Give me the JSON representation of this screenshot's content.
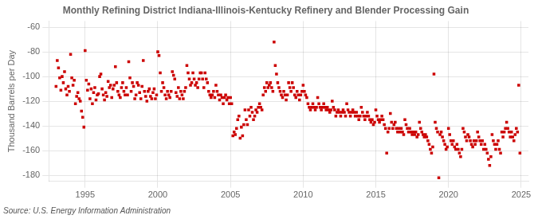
{
  "chart_data": {
    "type": "scatter",
    "title": "Monthly Refining District Indiana-Illinois-Kentucky Refinery and Blender Processing Gain",
    "ylabel": "Thousand Barrels per Day",
    "source": "Source: U.S. Energy Information Administration",
    "color": "#cc0000",
    "marker": "square",
    "grid": true,
    "xlim": [
      1992.5,
      2025.5
    ],
    "ylim": [
      -185,
      -55
    ],
    "xticks": [
      1995,
      2000,
      2005,
      2010,
      2015,
      2020,
      2025
    ],
    "yticks": [
      -180,
      -160,
      -140,
      -120,
      -100,
      -80,
      -60
    ],
    "x": [
      1993.0,
      1993.083,
      1993.167,
      1993.25,
      1993.333,
      1993.417,
      1993.5,
      1993.583,
      1993.667,
      1993.75,
      1993.833,
      1993.917,
      1994.0,
      1994.083,
      1994.167,
      1994.25,
      1994.333,
      1994.417,
      1994.5,
      1994.583,
      1994.667,
      1994.75,
      1994.833,
      1994.917,
      1995.0,
      1995.083,
      1995.167,
      1995.25,
      1995.333,
      1995.417,
      1995.5,
      1995.583,
      1995.667,
      1995.75,
      1995.833,
      1995.917,
      1996.0,
      1996.083,
      1996.167,
      1996.25,
      1996.333,
      1996.417,
      1996.5,
      1996.583,
      1996.667,
      1996.75,
      1996.833,
      1996.917,
      1997.0,
      1997.083,
      1997.167,
      1997.25,
      1997.333,
      1997.417,
      1997.5,
      1997.583,
      1997.667,
      1997.75,
      1997.833,
      1997.917,
      1998.0,
      1998.083,
      1998.167,
      1998.25,
      1998.333,
      1998.417,
      1998.5,
      1998.583,
      1998.667,
      1998.75,
      1998.833,
      1998.917,
      1999.0,
      1999.083,
      1999.167,
      1999.25,
      1999.333,
      1999.417,
      1999.5,
      1999.583,
      1999.667,
      1999.75,
      1999.833,
      1999.917,
      2000.0,
      2000.083,
      2000.167,
      2000.25,
      2000.333,
      2000.417,
      2000.5,
      2000.583,
      2000.667,
      2000.75,
      2000.833,
      2000.917,
      2001.0,
      2001.083,
      2001.167,
      2001.25,
      2001.333,
      2001.417,
      2001.5,
      2001.583,
      2001.667,
      2001.75,
      2001.833,
      2001.917,
      2002.0,
      2002.083,
      2002.167,
      2002.25,
      2002.333,
      2002.417,
      2002.5,
      2002.583,
      2002.667,
      2002.75,
      2002.833,
      2002.917,
      2003.0,
      2003.083,
      2003.167,
      2003.25,
      2003.333,
      2003.417,
      2003.5,
      2003.583,
      2003.667,
      2003.75,
      2003.833,
      2003.917,
      2004.0,
      2004.083,
      2004.167,
      2004.25,
      2004.333,
      2004.417,
      2004.5,
      2004.583,
      2004.667,
      2004.75,
      2004.833,
      2004.917,
      2005.0,
      2005.083,
      2005.167,
      2005.25,
      2005.333,
      2005.417,
      2005.5,
      2005.583,
      2005.667,
      2005.75,
      2005.833,
      2005.917,
      2006.0,
      2006.083,
      2006.167,
      2006.25,
      2006.333,
      2006.417,
      2006.5,
      2006.583,
      2006.667,
      2006.75,
      2006.833,
      2006.917,
      2007.0,
      2007.083,
      2007.167,
      2007.25,
      2007.333,
      2007.417,
      2007.5,
      2007.583,
      2007.667,
      2007.75,
      2007.833,
      2007.917,
      2008.0,
      2008.083,
      2008.167,
      2008.25,
      2008.333,
      2008.417,
      2008.5,
      2008.583,
      2008.667,
      2008.75,
      2008.833,
      2008.917,
      2009.0,
      2009.083,
      2009.167,
      2009.25,
      2009.333,
      2009.417,
      2009.5,
      2009.583,
      2009.667,
      2009.75,
      2009.833,
      2009.917,
      2010.0,
      2010.083,
      2010.167,
      2010.25,
      2010.333,
      2010.417,
      2010.5,
      2010.583,
      2010.667,
      2010.75,
      2010.833,
      2010.917,
      2011.0,
      2011.083,
      2011.167,
      2011.25,
      2011.333,
      2011.417,
      2011.5,
      2011.583,
      2011.667,
      2011.75,
      2011.833,
      2011.917,
      2012.0,
      2012.083,
      2012.167,
      2012.25,
      2012.333,
      2012.417,
      2012.5,
      2012.583,
      2012.667,
      2012.75,
      2012.833,
      2012.917,
      2013.0,
      2013.083,
      2013.167,
      2013.25,
      2013.333,
      2013.417,
      2013.5,
      2013.583,
      2013.667,
      2013.75,
      2013.833,
      2013.917,
      2014.0,
      2014.083,
      2014.167,
      2014.25,
      2014.333,
      2014.417,
      2014.5,
      2014.583,
      2014.667,
      2014.75,
      2014.833,
      2014.917,
      2015.0,
      2015.083,
      2015.167,
      2015.25,
      2015.333,
      2015.417,
      2015.5,
      2015.583,
      2015.667,
      2015.75,
      2015.833,
      2015.917,
      2016.0,
      2016.083,
      2016.167,
      2016.25,
      2016.333,
      2016.417,
      2016.5,
      2016.583,
      2016.667,
      2016.75,
      2016.833,
      2016.917,
      2017.0,
      2017.083,
      2017.167,
      2017.25,
      2017.333,
      2017.417,
      2017.5,
      2017.583,
      2017.667,
      2017.75,
      2017.833,
      2017.917,
      2018.0,
      2018.083,
      2018.167,
      2018.25,
      2018.333,
      2018.417,
      2018.5,
      2018.583,
      2018.667,
      2018.75,
      2018.833,
      2018.917,
      2019.0,
      2019.083,
      2019.167,
      2019.25,
      2019.333,
      2019.417,
      2019.5,
      2019.583,
      2019.667,
      2019.75,
      2019.833,
      2019.917,
      2020.0,
      2020.083,
      2020.167,
      2020.25,
      2020.333,
      2020.417,
      2020.5,
      2020.583,
      2020.667,
      2020.75,
      2020.833,
      2020.917,
      2021.0,
      2021.083,
      2021.167,
      2021.25,
      2021.333,
      2021.417,
      2021.5,
      2021.583,
      2021.667,
      2021.75,
      2021.833,
      2021.917,
      2022.0,
      2022.083,
      2022.167,
      2022.25,
      2022.333,
      2022.417,
      2022.5,
      2022.583,
      2022.667,
      2022.75,
      2022.833,
      2022.917,
      2023.0,
      2023.083,
      2023.167,
      2023.25,
      2023.333,
      2023.417,
      2023.5,
      2023.583,
      2023.667,
      2023.75,
      2023.833,
      2023.917,
      2024.0,
      2024.083,
      2024.167,
      2024.25,
      2024.333,
      2024.417,
      2024.5,
      2024.583,
      2024.667,
      2024.75,
      2024.833,
      2024.917
    ],
    "values": [
      -108,
      -87,
      -93,
      -101,
      -111,
      -100,
      -105,
      -96,
      -110,
      -115,
      -108,
      -112,
      -82,
      -101,
      -107,
      -103,
      -122,
      -116,
      -113,
      -118,
      -120,
      -128,
      -133,
      -141,
      -79,
      -103,
      -111,
      -106,
      -118,
      -110,
      -122,
      -113,
      -109,
      -119,
      -115,
      -114,
      -100,
      -98,
      -110,
      -115,
      -119,
      -113,
      -116,
      -104,
      -109,
      -107,
      -117,
      -110,
      -107,
      -92,
      -105,
      -112,
      -115,
      -117,
      -109,
      -105,
      -112,
      -115,
      -109,
      -115,
      -88,
      -101,
      -112,
      -105,
      -108,
      -118,
      -115,
      -105,
      -107,
      -113,
      -118,
      -108,
      -87,
      -112,
      -116,
      -120,
      -112,
      -110,
      -116,
      -118,
      -113,
      -110,
      -118,
      -115,
      -80,
      -83,
      -97,
      -112,
      -105,
      -109,
      -115,
      -118,
      -112,
      -115,
      -117,
      -112,
      -96,
      -99,
      -102,
      -113,
      -116,
      -109,
      -118,
      -112,
      -115,
      -118,
      -112,
      -109,
      -91,
      -97,
      -102,
      -107,
      -105,
      -97,
      -102,
      -107,
      -105,
      -109,
      -102,
      -97,
      -97,
      -102,
      -109,
      -97,
      -102,
      -105,
      -112,
      -115,
      -117,
      -115,
      -112,
      -117,
      -107,
      -112,
      -115,
      -119,
      -115,
      -117,
      -122,
      -117,
      -115,
      -119,
      -117,
      -122,
      -117,
      -122,
      -148,
      -145,
      -147,
      -142,
      -135,
      -132,
      -150,
      -141,
      -148,
      -139,
      -127,
      -135,
      -139,
      -127,
      -132,
      -125,
      -129,
      -135,
      -132,
      -127,
      -129,
      -125,
      -122,
      -125,
      -127,
      -115,
      -109,
      -112,
      -105,
      -109,
      -107,
      -105,
      -109,
      -112,
      -72,
      -91,
      -98,
      -105,
      -109,
      -112,
      -115,
      -117,
      -112,
      -115,
      -119,
      -115,
      -105,
      -109,
      -112,
      -105,
      -109,
      -115,
      -117,
      -112,
      -115,
      -119,
      -115,
      -112,
      -107,
      -112,
      -115,
      -117,
      -122,
      -125,
      -127,
      -125,
      -122,
      -125,
      -127,
      -125,
      -117,
      -122,
      -125,
      -127,
      -125,
      -122,
      -125,
      -127,
      -125,
      -127,
      -129,
      -127,
      -120,
      -125,
      -127,
      -132,
      -129,
      -127,
      -129,
      -132,
      -129,
      -127,
      -129,
      -132,
      -122,
      -127,
      -129,
      -132,
      -129,
      -127,
      -129,
      -132,
      -129,
      -132,
      -135,
      -132,
      -125,
      -129,
      -132,
      -135,
      -132,
      -129,
      -132,
      -135,
      -137,
      -135,
      -139,
      -137,
      -127,
      -132,
      -135,
      -137,
      -135,
      -132,
      -135,
      -139,
      -142,
      -162,
      -145,
      -142,
      -130,
      -137,
      -142,
      -139,
      -137,
      -142,
      -145,
      -142,
      -145,
      -142,
      -145,
      -147,
      -135,
      -139,
      -142,
      -145,
      -142,
      -145,
      -147,
      -145,
      -147,
      -145,
      -149,
      -147,
      -137,
      -142,
      -145,
      -147,
      -149,
      -147,
      -149,
      -152,
      -155,
      -159,
      -162,
      -157,
      -98,
      -137,
      -142,
      -145,
      -182,
      -147,
      -145,
      -149,
      -152,
      -155,
      -159,
      -157,
      -142,
      -147,
      -152,
      -155,
      -152,
      -157,
      -159,
      -155,
      -159,
      -162,
      -165,
      -159,
      -142,
      -145,
      -149,
      -152,
      -147,
      -149,
      -152,
      -155,
      -157,
      -152,
      -155,
      -152,
      -145,
      -149,
      -152,
      -155,
      -152,
      -159,
      -155,
      -159,
      -162,
      -167,
      -172,
      -165,
      -147,
      -152,
      -155,
      -159,
      -155,
      -152,
      -159,
      -162,
      -145,
      -149,
      -145,
      -142,
      -137,
      -142,
      -145,
      -149,
      -145,
      -149,
      -152,
      -147,
      -142,
      -145,
      -107,
      -162
    ]
  }
}
